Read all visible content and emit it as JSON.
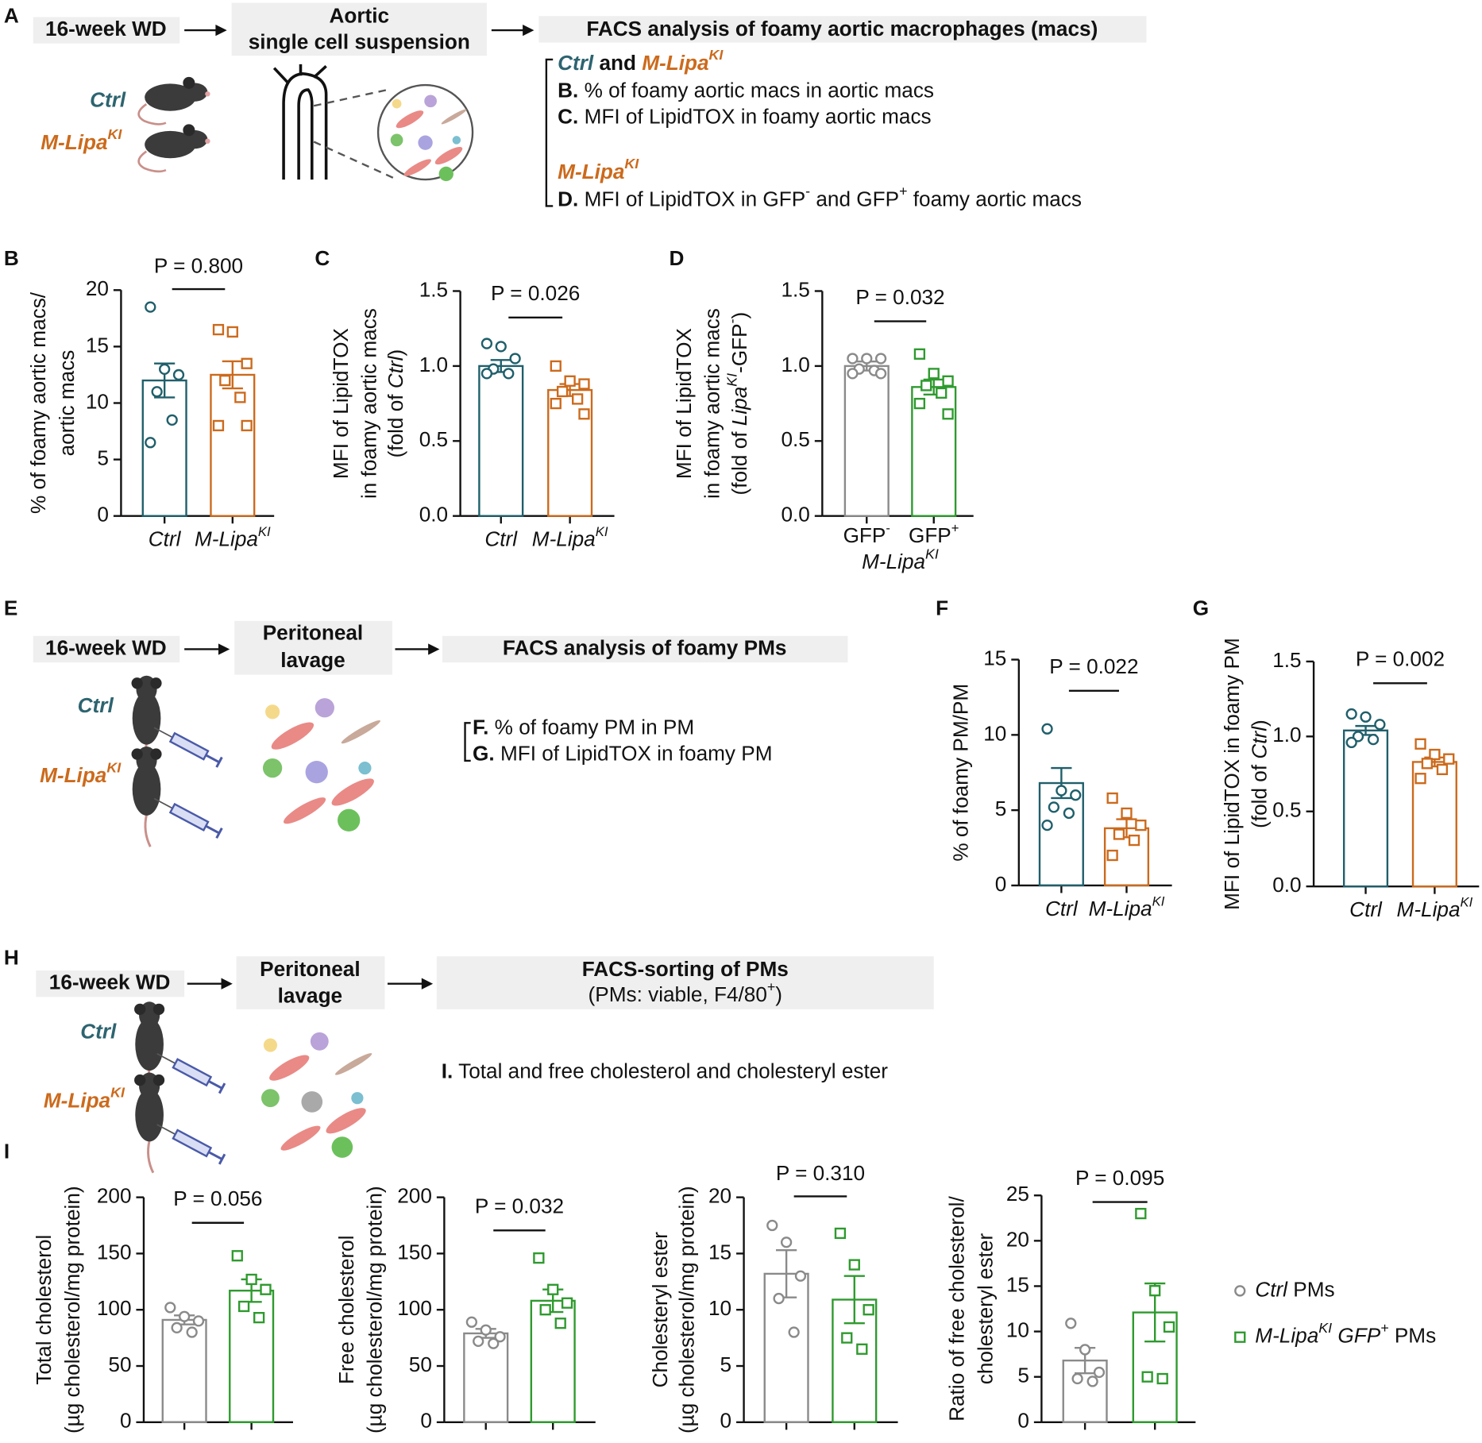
{
  "diagram_a": {
    "letter": "A",
    "step1": "16-week WD",
    "step2": [
      "Aortic",
      "single cell suspension"
    ],
    "step3": "FACS analysis of foamy aortic macrophages (macs)",
    "groups": [
      [
        {
          "text": "Ctrl",
          "italic": true,
          "bold": true,
          "color": "#2d6470"
        }
      ],
      [
        {
          "text": "M-Lipa",
          "italic": true,
          "bold": true,
          "color": "#cc6a1c"
        },
        {
          "text": "KI",
          "italic": true,
          "bold": true,
          "sup": true,
          "color": "#cc6a1c"
        }
      ]
    ],
    "notes": [
      [
        {
          "text": "Ctrl",
          "italic": true,
          "bold": true,
          "color": "#2d6470"
        },
        {
          "text": " and ",
          "bold": true
        },
        {
          "text": "M-Lipa",
          "italic": true,
          "bold": true,
          "color": "#cc6a1c"
        },
        {
          "text": "KI",
          "italic": true,
          "bold": true,
          "sup": true,
          "color": "#cc6a1c"
        }
      ],
      [
        {
          "text": "B.",
          "bold": true
        },
        {
          "text": " % of foamy aortic macs in aortic macs"
        }
      ],
      [
        {
          "text": "C.",
          "bold": true
        },
        {
          "text": " MFI of LipidTOX in foamy aortic macs"
        }
      ],
      [
        {
          "text": "M-Lipa",
          "italic": true,
          "bold": true,
          "color": "#cc6a1c"
        },
        {
          "text": "KI",
          "italic": true,
          "bold": true,
          "sup": true,
          "color": "#cc6a1c"
        }
      ],
      [
        {
          "text": "D.",
          "bold": true
        },
        {
          "text": " MFI of LipidTOX in GFP"
        },
        {
          "text": "-",
          "sup": true
        },
        {
          "text": " and GFP"
        },
        {
          "text": "+",
          "sup": true
        },
        {
          "text": " foamy aortic macs"
        }
      ]
    ]
  },
  "diagram_e": {
    "letter": "E",
    "step1": "16-week WD",
    "step2": [
      "Peritoneal",
      "lavage"
    ],
    "step3": "FACS analysis of foamy PMs",
    "groups": [
      [
        {
          "text": "Ctrl",
          "italic": true,
          "bold": true,
          "color": "#2d6470"
        }
      ],
      [
        {
          "text": "M-Lipa",
          "italic": true,
          "bold": true,
          "color": "#cc6a1c"
        },
        {
          "text": "KI",
          "italic": true,
          "bold": true,
          "sup": true,
          "color": "#cc6a1c"
        }
      ]
    ],
    "notes": [
      [
        {
          "text": "F.",
          "bold": true
        },
        {
          "text": " % of foamy PM in PM"
        }
      ],
      [
        {
          "text": "G.",
          "bold": true
        },
        {
          "text": " MFI of LipidTOX in foamy PM"
        }
      ]
    ]
  },
  "diagram_h": {
    "letter": "H",
    "step1": "16-week WD",
    "step2": [
      "Peritoneal",
      "lavage"
    ],
    "step3": [
      [
        {
          "text": "FACS-sorting of PMs",
          "bold": true
        }
      ],
      [
        {
          "text": "(PMs: viable, F4/80"
        },
        {
          "text": "+",
          "sup": true
        },
        {
          "text": ")"
        }
      ]
    ],
    "groups": [
      [
        {
          "text": "Ctrl",
          "italic": true,
          "bold": true,
          "color": "#2d6470"
        }
      ],
      [
        {
          "text": "M-Lipa",
          "italic": true,
          "bold": true,
          "color": "#cc6a1c"
        },
        {
          "text": "KI",
          "italic": true,
          "bold": true,
          "sup": true,
          "color": "#cc6a1c"
        }
      ]
    ],
    "notes": [
      [
        {
          "text": "I.",
          "bold": true
        },
        {
          "text": " Total and free cholesterol and cholesteryl ester"
        }
      ]
    ]
  },
  "chart_data": [
    {
      "type": "bar",
      "panel": "B",
      "ylabel": [
        [
          {
            "text": "% of foamy aortic macs/"
          }
        ],
        [
          {
            "text": "aortic macs"
          }
        ]
      ],
      "categories": [
        "Ctrl",
        "M-Lipa"
      ],
      "category_sup": [
        null,
        "KI"
      ],
      "values": [
        12,
        12.5
      ],
      "errors": [
        1.5,
        1.2
      ],
      "points": [
        [
          18.5,
          13,
          12.5,
          11,
          8.5,
          6.5
        ],
        [
          16.5,
          16.3,
          13.5,
          12,
          10.5,
          8,
          8
        ]
      ],
      "colors": [
        "#1f5f6b",
        "#cc6a1c"
      ],
      "markers": [
        "circle",
        "square"
      ],
      "ylim": [
        0,
        20
      ],
      "yticks": [
        0,
        5,
        10,
        15,
        20
      ],
      "annotation": "P = 0.800"
    },
    {
      "type": "bar",
      "panel": "C",
      "ylabel": [
        [
          {
            "text": "MFI of LipidTOX"
          }
        ],
        [
          {
            "text": "in foamy aortic macs"
          }
        ],
        [
          {
            "text": "(fold of "
          },
          {
            "text": "Ctrl",
            "italic": true
          },
          {
            "text": ")"
          }
        ]
      ],
      "categories": [
        "Ctrl",
        "M-Lipa"
      ],
      "category_sup": [
        null,
        "KI"
      ],
      "values": [
        1.0,
        0.84
      ],
      "errors": [
        0.04,
        0.04
      ],
      "points": [
        [
          1.15,
          1.13,
          1.05,
          0.98,
          0.95,
          0.95
        ],
        [
          1.0,
          0.9,
          0.88,
          0.83,
          0.78,
          0.75,
          0.68
        ]
      ],
      "colors": [
        "#1f5f6b",
        "#cc6a1c"
      ],
      "markers": [
        "circle",
        "square"
      ],
      "ylim": [
        0,
        1.5
      ],
      "yticks": [
        {
          "value": 0,
          "label": "0.0"
        },
        0.5,
        {
          "value": 1,
          "label": "1.0"
        },
        1.5
      ],
      "annotation": "P = 0.026"
    },
    {
      "type": "bar",
      "panel": "D",
      "ylabel": [
        [
          {
            "text": "MFI of LipidTOX"
          }
        ],
        [
          {
            "text": "in foamy aortic macs"
          }
        ],
        [
          {
            "text": "(fold of "
          },
          {
            "text": "Lipa",
            "italic": true
          },
          {
            "text": "KI",
            "italic": true,
            "sup": true
          },
          {
            "text": "-GFP"
          },
          {
            "text": "-",
            "sup": true
          },
          {
            "text": ")"
          }
        ]
      ],
      "categories": [
        "GFP",
        "GFP"
      ],
      "category_sup": [
        "-",
        "+"
      ],
      "group_label": [
        {
          "text": "M-Lipa",
          "italic": true
        },
        {
          "text": "KI",
          "italic": true,
          "sup": true
        }
      ],
      "values": [
        1.0,
        0.86
      ],
      "errors": [
        0.03,
        0.05
      ],
      "points": [
        [
          1.05,
          1.05,
          1.05,
          0.98,
          0.97,
          0.95,
          0.95
        ],
        [
          1.08,
          0.95,
          0.9,
          0.87,
          0.82,
          0.75,
          0.68
        ]
      ],
      "colors": [
        "#8a8a8a",
        "#2e9a2e"
      ],
      "markers": [
        "circle",
        "square"
      ],
      "ylim": [
        0,
        1.5
      ],
      "yticks": [
        {
          "value": 0,
          "label": "0.0"
        },
        0.5,
        {
          "value": 1,
          "label": "1.0"
        },
        1.5
      ],
      "annotation": "P = 0.032"
    },
    {
      "type": "bar",
      "panel": "F",
      "ylabel": [
        [
          {
            "text": "% of foamy PM/PM"
          }
        ]
      ],
      "categories": [
        "Ctrl",
        "M-Lipa"
      ],
      "category_sup": [
        null,
        "KI"
      ],
      "values": [
        6.8,
        3.8
      ],
      "errors": [
        1.0,
        0.6
      ],
      "points": [
        [
          10.4,
          6.3,
          6.0,
          5.2,
          4.8,
          4.0
        ],
        [
          5.8,
          4.8,
          4.0,
          3.4,
          3.0,
          2.0
        ]
      ],
      "colors": [
        "#1f5f6b",
        "#cc6a1c"
      ],
      "markers": [
        "circle",
        "square"
      ],
      "ylim": [
        0,
        15
      ],
      "yticks": [
        0,
        5,
        10,
        15
      ],
      "annotation": "P = 0.022"
    },
    {
      "type": "bar",
      "panel": "G",
      "ylabel": [
        [
          {
            "text": "MFI of LipidTOX in foamy PM"
          }
        ],
        [
          {
            "text": "(fold of "
          },
          {
            "text": "Ctrl",
            "italic": true
          },
          {
            "text": ")"
          }
        ]
      ],
      "categories": [
        "Ctrl",
        "M-Lipa"
      ],
      "category_sup": [
        null,
        "KI"
      ],
      "values": [
        1.04,
        0.83
      ],
      "errors": [
        0.03,
        0.03
      ],
      "points": [
        [
          1.15,
          1.13,
          1.08,
          1.0,
          0.98,
          0.96
        ],
        [
          0.95,
          0.88,
          0.85,
          0.82,
          0.78,
          0.72
        ]
      ],
      "colors": [
        "#1f5f6b",
        "#cc6a1c"
      ],
      "markers": [
        "circle",
        "square"
      ],
      "ylim": [
        0,
        1.5
      ],
      "yticks": [
        {
          "value": 0,
          "label": "0.0"
        },
        0.5,
        {
          "value": 1,
          "label": "1.0"
        },
        1.5
      ],
      "annotation": "P = 0.002"
    },
    {
      "type": "bar",
      "panel": "I",
      "ylabel": [
        [
          {
            "text": "Total cholesterol"
          }
        ],
        [
          {
            "text": "(µg cholesterol/mg protein)"
          }
        ]
      ],
      "categories": [
        null,
        null
      ],
      "values": [
        91,
        117
      ],
      "errors": [
        4,
        10
      ],
      "points": [
        [
          102,
          94,
          90,
          84,
          80
        ],
        [
          148,
          127,
          118,
          103,
          93
        ]
      ],
      "colors": [
        "#8a8a8a",
        "#2e9a2e"
      ],
      "markers": [
        "circle",
        "square"
      ],
      "ylim": [
        0,
        200
      ],
      "yticks": [
        0,
        50,
        100,
        150,
        200
      ],
      "annotation": "P = 0.056"
    },
    {
      "type": "bar",
      "ylabel": [
        [
          {
            "text": "Free cholesterol"
          }
        ],
        [
          {
            "text": "(µg cholesterol/mg protein)"
          }
        ]
      ],
      "categories": [
        null,
        null
      ],
      "values": [
        79,
        108
      ],
      "errors": [
        4,
        10
      ],
      "points": [
        [
          89,
          82,
          76,
          72,
          70
        ],
        [
          146,
          118,
          106,
          100,
          88
        ]
      ],
      "colors": [
        "#8a8a8a",
        "#2e9a2e"
      ],
      "markers": [
        "circle",
        "square"
      ],
      "ylim": [
        0,
        200
      ],
      "yticks": [
        0,
        50,
        100,
        150,
        200
      ],
      "annotation": "P = 0.032"
    },
    {
      "type": "bar",
      "ylabel": [
        [
          {
            "text": "Cholesteryl ester"
          }
        ],
        [
          {
            "text": "(µg cholesterol/mg protein)"
          }
        ]
      ],
      "categories": [
        null,
        null
      ],
      "values": [
        13.2,
        10.9
      ],
      "errors": [
        2.1,
        2.1
      ],
      "points": [
        [
          17.5,
          16.0,
          13.0,
          11.0,
          8.0
        ],
        [
          16.8,
          14.0,
          10.0,
          7.5,
          6.5
        ]
      ],
      "colors": [
        "#8a8a8a",
        "#2e9a2e"
      ],
      "markers": [
        "circle",
        "square"
      ],
      "ylim": [
        0,
        20
      ],
      "yticks": [
        0,
        5,
        10,
        15,
        20
      ],
      "annotation": "P = 0.310"
    },
    {
      "type": "bar",
      "ylabel": [
        [
          {
            "text": "Ratio of free cholesterol/"
          }
        ],
        [
          {
            "text": "cholesteryl ester"
          }
        ]
      ],
      "categories": [
        null,
        null
      ],
      "values": [
        6.8,
        12.1
      ],
      "errors": [
        1.4,
        3.2
      ],
      "points": [
        [
          10.9,
          8.0,
          5.5,
          4.8,
          4.5
        ],
        [
          23.0,
          14.5,
          10.5,
          5.0,
          4.8
        ]
      ],
      "colors": [
        "#8a8a8a",
        "#2e9a2e"
      ],
      "markers": [
        "circle",
        "square"
      ],
      "ylim": [
        0,
        25
      ],
      "yticks": [
        0,
        5,
        10,
        15,
        20,
        25
      ],
      "annotation": "P = 0.095",
      "legend": [
        [
          {
            "text": "Ctrl",
            "italic": true
          },
          {
            "text": " PMs"
          }
        ],
        [
          {
            "text": "M-Lipa",
            "italic": true
          },
          {
            "text": "KI",
            "italic": true,
            "sup": true
          },
          {
            "text": " GFP",
            "italic": true
          },
          {
            "text": "+",
            "italic": true,
            "sup": true
          },
          {
            "text": " PMs"
          }
        ]
      ]
    }
  ]
}
